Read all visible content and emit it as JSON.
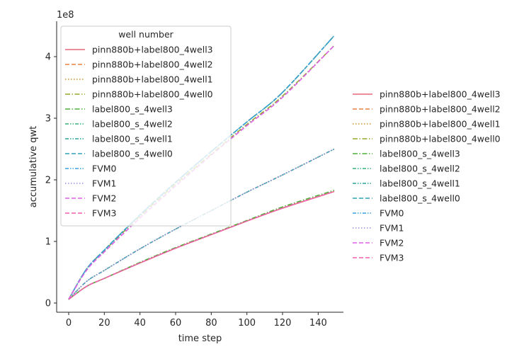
{
  "chart_data": {
    "type": "line",
    "xlabel": "time step",
    "ylabel": "accumulative qwt",
    "offset_text": "1e8",
    "xlim": [
      0,
      149
    ],
    "ylim": [
      0,
      450000000
    ],
    "xticks": [
      0,
      20,
      40,
      60,
      80,
      100,
      120,
      140
    ],
    "yticks": [
      0,
      100000000,
      200000000,
      300000000,
      400000000
    ],
    "ytick_labels": [
      "0",
      "1",
      "2",
      "3",
      "4"
    ],
    "grid": false,
    "legend_title": "well number",
    "legend_placement": "upper-left inside axes, duplicated outside right",
    "series": [
      {
        "name": "pinn880b+label800_4well3",
        "color": "#e8677a",
        "dash": "solid",
        "x": [
          0,
          10,
          20,
          40,
          60,
          80,
          100,
          120,
          149
        ],
        "y": [
          6000000,
          27000000,
          40000000,
          65000000,
          89000000,
          111000000,
          133000000,
          154000000,
          181000000
        ]
      },
      {
        "name": "pinn880b+label800_4well2",
        "color": "#e8803e",
        "dash": "dashed",
        "x": [
          0,
          10,
          20,
          40,
          60,
          80,
          100,
          120,
          149
        ],
        "y": [
          6000000,
          55000000,
          86000000,
          143000000,
          196000000,
          246000000,
          294000000,
          342000000,
          434000000
        ]
      },
      {
        "name": "pinn880b+label800_4well1",
        "color": "#c49223",
        "dash": "dotted",
        "x": [
          0,
          10,
          20,
          40,
          60,
          80,
          100,
          120,
          149
        ],
        "y": [
          6000000,
          35000000,
          53000000,
          88000000,
          120000000,
          150000000,
          180000000,
          208000000,
          250000000
        ]
      },
      {
        "name": "pinn880b+label800_4well0",
        "color": "#96a72b",
        "dash": "dashdot",
        "x": [
          0,
          10,
          20,
          40,
          60,
          80,
          100,
          120,
          149
        ],
        "y": [
          6000000,
          55000000,
          85000000,
          141000000,
          193000000,
          242000000,
          290000000,
          336000000,
          418000000
        ]
      },
      {
        "name": "label800_s_4well3",
        "color": "#4daf3a",
        "dash": "dashdot",
        "x": [
          0,
          10,
          20,
          40,
          60,
          80,
          100,
          120,
          149
        ],
        "y": [
          6000000,
          27000000,
          40000000,
          66000000,
          90000000,
          112000000,
          134000000,
          156000000,
          183000000
        ]
      },
      {
        "name": "label800_s_4well2",
        "color": "#37b27f",
        "dash": "dashdotdot",
        "x": [
          0,
          10,
          20,
          40,
          60,
          80,
          100,
          120,
          149
        ],
        "y": [
          6000000,
          55000000,
          86000000,
          143000000,
          196000000,
          246000000,
          294000000,
          342000000,
          434000000
        ]
      },
      {
        "name": "label800_s_4well1",
        "color": "#2ba69a",
        "dash": "dashdotdot",
        "x": [
          0,
          10,
          20,
          40,
          60,
          80,
          100,
          120,
          149
        ],
        "y": [
          6000000,
          35000000,
          53000000,
          88000000,
          120000000,
          150000000,
          180000000,
          208000000,
          250000000
        ]
      },
      {
        "name": "label800_s_4well0",
        "color": "#2fa3b5",
        "dash": "dashed",
        "x": [
          0,
          10,
          20,
          40,
          60,
          80,
          100,
          120,
          149
        ],
        "y": [
          6000000,
          55000000,
          86000000,
          143000000,
          196000000,
          246000000,
          294000000,
          342000000,
          434000000
        ]
      },
      {
        "name": "FVM0",
        "color": "#3ba2e0",
        "dash": "dashdotdot",
        "x": [
          0,
          10,
          20,
          40,
          60,
          80,
          100,
          120,
          149
        ],
        "y": [
          6000000,
          55000000,
          86000000,
          143000000,
          196000000,
          246000000,
          294000000,
          342000000,
          434000000
        ]
      },
      {
        "name": "FVM1",
        "color": "#9a8ee6",
        "dash": "dotted",
        "x": [
          0,
          10,
          20,
          40,
          60,
          80,
          100,
          120,
          149
        ],
        "y": [
          6000000,
          35000000,
          53000000,
          88000000,
          120000000,
          150000000,
          180000000,
          208000000,
          250000000
        ]
      },
      {
        "name": "FVM2",
        "color": "#dd5ee8",
        "dash": "dashed",
        "x": [
          0,
          10,
          20,
          40,
          60,
          80,
          100,
          120,
          149
        ],
        "y": [
          6000000,
          53000000,
          83000000,
          138000000,
          190000000,
          240000000,
          288000000,
          334000000,
          418000000
        ]
      },
      {
        "name": "FVM3",
        "color": "#f05fb0",
        "dash": "dashed",
        "x": [
          0,
          10,
          20,
          40,
          60,
          80,
          100,
          120,
          149
        ],
        "y": [
          6000000,
          27000000,
          40000000,
          65000000,
          89000000,
          111000000,
          133000000,
          154000000,
          181000000
        ]
      }
    ]
  }
}
